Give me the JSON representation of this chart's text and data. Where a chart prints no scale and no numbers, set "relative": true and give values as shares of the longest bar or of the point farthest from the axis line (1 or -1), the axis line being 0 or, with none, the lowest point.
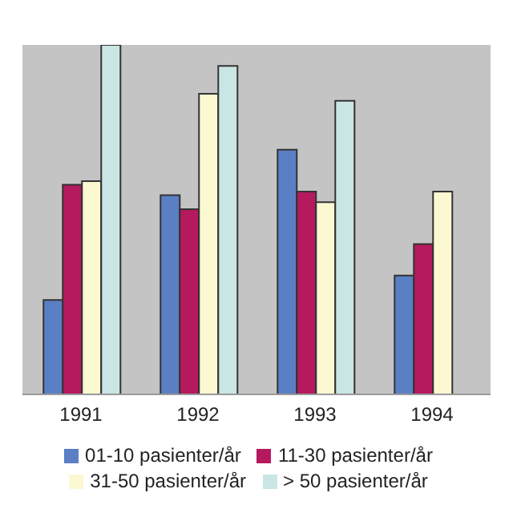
{
  "chart_data": {
    "type": "bar",
    "relative": true,
    "categories": [
      "1991",
      "1992",
      "1993",
      "1994"
    ],
    "series": [
      {
        "name": "01-10 pasienter/år",
        "color": "#5b7fc4",
        "values": [
          0.27,
          0.57,
          0.7,
          0.34
        ]
      },
      {
        "name": "11-30 pasienter/år",
        "color": "#b5195e",
        "values": [
          0.6,
          0.53,
          0.58,
          0.43
        ]
      },
      {
        "name": "31-50 pasienter/år",
        "color": "#fbf8d2",
        "values": [
          0.61,
          0.86,
          0.55,
          0.58
        ]
      },
      {
        "name": "> 50 pasienter/år",
        "color": "#c9e6e4",
        "values": [
          1,
          0.94,
          0.84,
          null
        ]
      }
    ],
    "legend": "bottom"
  }
}
